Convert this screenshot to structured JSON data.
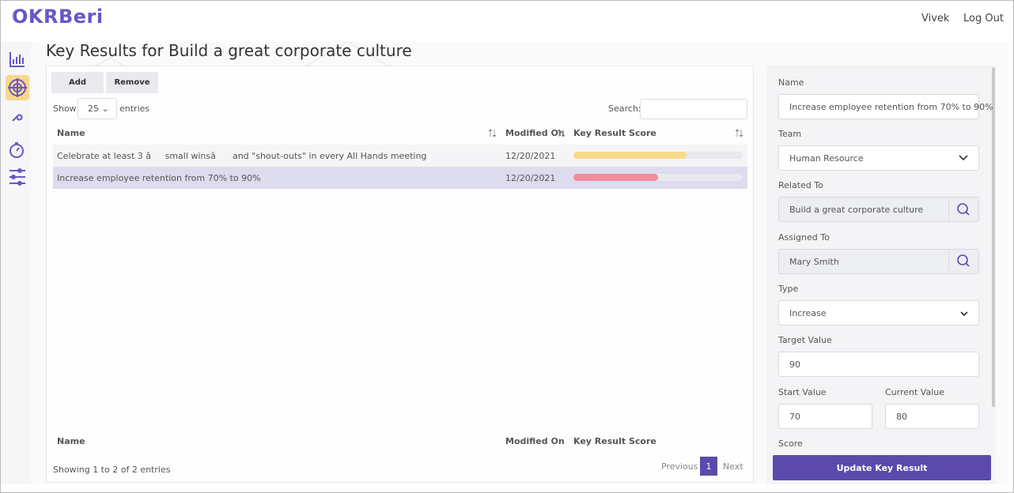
{
  "header": {
    "logo": "OKRBeri",
    "user": "Vivek",
    "logout": "Log Out"
  },
  "page_title": "Key Results for Build a great corporate culture",
  "toolbar": {
    "add": "Add",
    "remove": "Remove"
  },
  "table": {
    "show_label": "Show",
    "page_size": "25",
    "entries_label": "entries",
    "search_label": "Search:",
    "columns": [
      "Name",
      "Modified On",
      "Key Result Score"
    ],
    "rows": [
      {
        "name": "Celebrate at least 3 âsmall winsâ and \"shout-outs\" in every All Hands meeting",
        "modified": "12/20/2021",
        "score": 67
      },
      {
        "name": "Increase employee retention from 70% to 90%",
        "modified": "12/20/2021",
        "score": 50
      }
    ],
    "info": "Showing 1 to 2 of 2 entries",
    "pagination": {
      "previous": "Previous",
      "page": "1",
      "next": "Next"
    }
  },
  "form": {
    "name_label": "Name",
    "name_value": "Increase employee retention from 70% to 90%",
    "team_label": "Team",
    "team_value": "Human Resource",
    "related_label": "Related To",
    "related_value": "Build a great corporate culture",
    "assigned_label": "Assigned To",
    "assigned_value": "Mary Smith",
    "type_label": "Type",
    "type_value": "Increase",
    "target_label": "Target Value",
    "target_value": "90",
    "start_label": "Start Value",
    "start_value": "70",
    "current_label": "Current Value",
    "current_value": "80",
    "score_label": "Score",
    "submit": "Update Key Result"
  }
}
